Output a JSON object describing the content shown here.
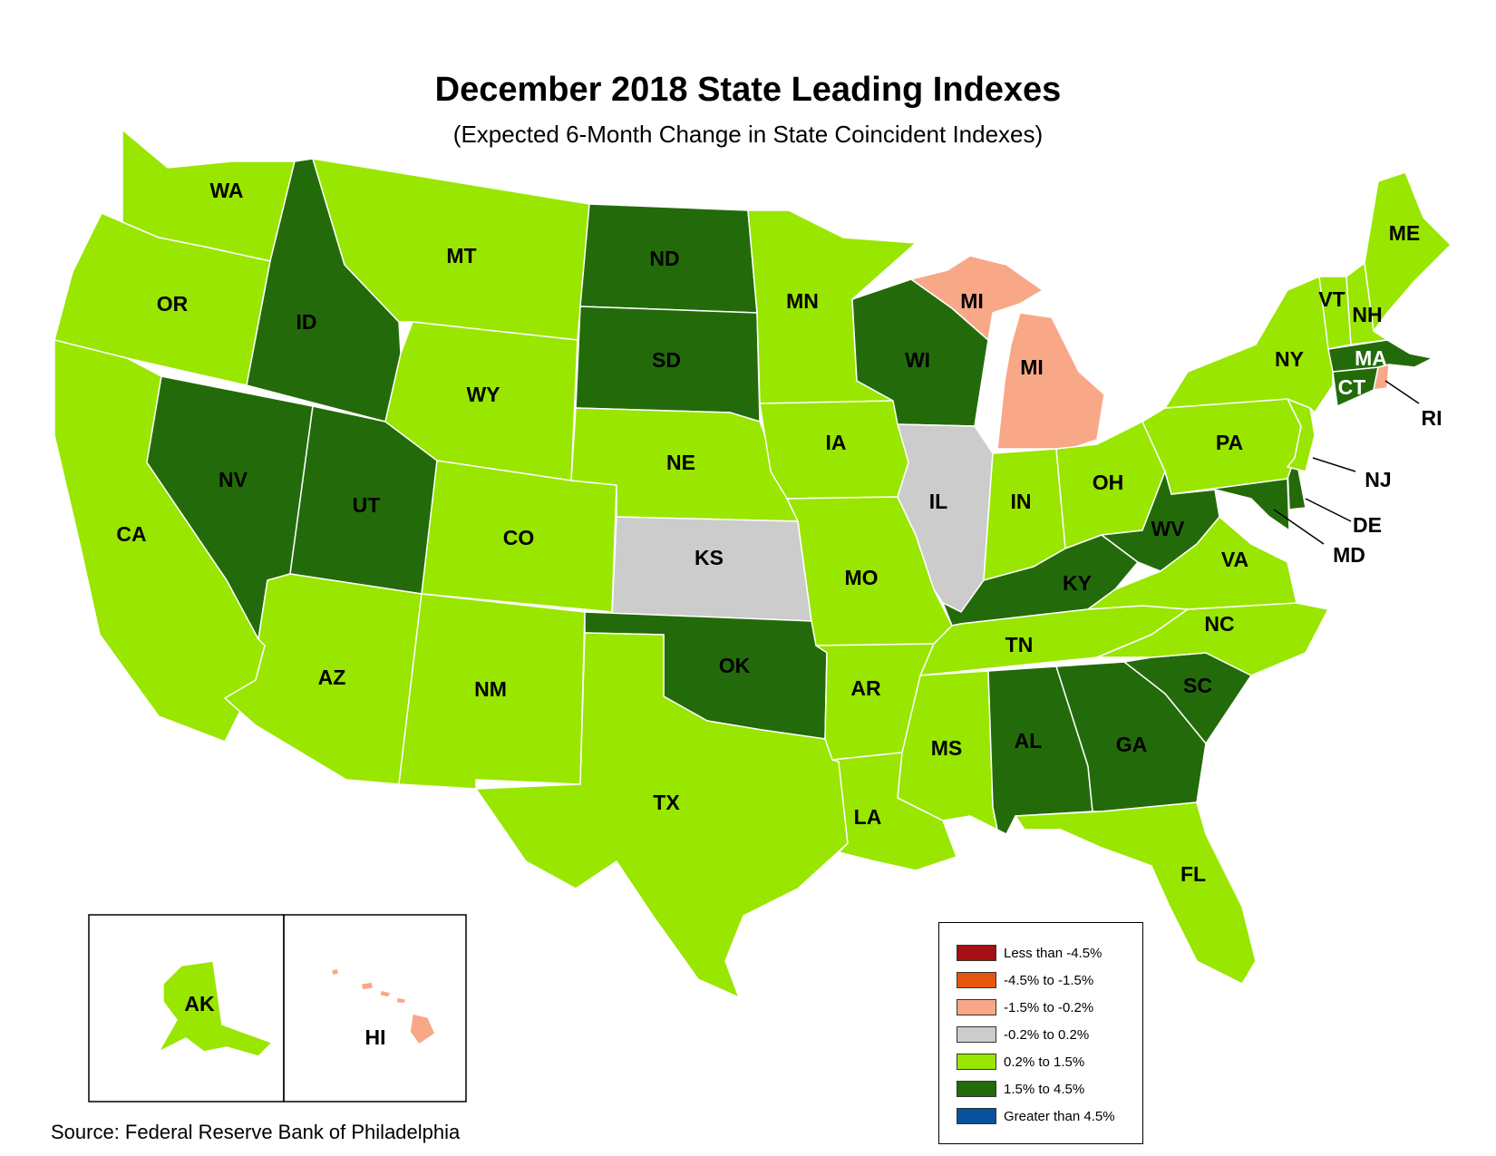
{
  "title": "December 2018 State Leading Indexes",
  "subtitle": "(Expected 6-Month Change in State Coincident Indexes)",
  "source": "Source: Federal Reserve Bank of Philadelphia",
  "colors": {
    "less_than_-4.5": "#a50f15",
    "-4.5_to_-1.5": "#e6550d",
    "-1.5_to_-0.2": "#f8a887",
    "-0.2_to_0.2": "#cccccc",
    "0.2_to_1.5": "#99e600",
    "1.5_to_4.5": "#236b0a",
    "greater_than_4.5": "#08519c",
    "border": "#ffffff"
  },
  "legend": [
    {
      "label": "Less than -4.5%",
      "color": "#a50f15"
    },
    {
      "label": "-4.5% to -1.5%",
      "color": "#e6550d"
    },
    {
      "label": "-1.5% to -0.2%",
      "color": "#f8a887"
    },
    {
      "label": "-0.2% to 0.2%",
      "color": "#cccccc"
    },
    {
      "label": "0.2% to 1.5%",
      "color": "#99e600"
    },
    {
      "label": "1.5% to 4.5%",
      "color": "#236b0a"
    },
    {
      "label": "Greater than 4.5%",
      "color": "#08519c"
    }
  ],
  "states": {
    "WA": "0.2% to 1.5%",
    "OR": "0.2% to 1.5%",
    "CA": "0.2% to 1.5%",
    "ID": "1.5% to 4.5%",
    "NV": "1.5% to 4.5%",
    "UT": "1.5% to 4.5%",
    "AZ": "0.2% to 1.5%",
    "MT": "0.2% to 1.5%",
    "WY": "0.2% to 1.5%",
    "CO": "0.2% to 1.5%",
    "NM": "0.2% to 1.5%",
    "ND": "1.5% to 4.5%",
    "SD": "1.5% to 4.5%",
    "NE": "0.2% to 1.5%",
    "KS": "-0.2% to 0.2%",
    "OK": "1.5% to 4.5%",
    "TX": "0.2% to 1.5%",
    "MN": "0.2% to 1.5%",
    "IA": "0.2% to 1.5%",
    "MO": "0.2% to 1.5%",
    "AR": "0.2% to 1.5%",
    "LA": "0.2% to 1.5%",
    "WI": "1.5% to 4.5%",
    "IL": "-0.2% to 0.2%",
    "MI": "-1.5% to -0.2%",
    "IN": "0.2% to 1.5%",
    "OH": "0.2% to 1.5%",
    "KY": "1.5% to 4.5%",
    "TN": "0.2% to 1.5%",
    "MS": "0.2% to 1.5%",
    "AL": "1.5% to 4.5%",
    "GA": "1.5% to 4.5%",
    "FL": "0.2% to 1.5%",
    "SC": "1.5% to 4.5%",
    "NC": "0.2% to 1.5%",
    "VA": "0.2% to 1.5%",
    "WV": "1.5% to 4.5%",
    "MD": "1.5% to 4.5%",
    "DE": "1.5% to 4.5%",
    "NJ": "0.2% to 1.5%",
    "PA": "0.2% to 1.5%",
    "NY": "0.2% to 1.5%",
    "CT": "1.5% to 4.5%",
    "RI": "-1.5% to -0.2%",
    "MA": "1.5% to 4.5%",
    "VT": "0.2% to 1.5%",
    "NH": "0.2% to 1.5%",
    "ME": "0.2% to 1.5%",
    "AK": "0.2% to 1.5%",
    "HI": "-1.5% to -0.2%"
  },
  "labels": {
    "WA": "WA",
    "OR": "OR",
    "CA": "CA",
    "ID": "ID",
    "NV": "NV",
    "UT": "UT",
    "AZ": "AZ",
    "MT": "MT",
    "WY": "WY",
    "CO": "CO",
    "NM": "NM",
    "ND": "ND",
    "SD": "SD",
    "NE": "NE",
    "KS": "KS",
    "OK": "OK",
    "TX": "TX",
    "MN": "MN",
    "IA": "IA",
    "MO": "MO",
    "AR": "AR",
    "LA": "LA",
    "WI": "WI",
    "IL": "IL",
    "MI_UP": "MI",
    "MI_LP": "MI",
    "IN": "IN",
    "OH": "OH",
    "KY": "KY",
    "TN": "TN",
    "MS": "MS",
    "AL": "AL",
    "GA": "GA",
    "FL": "FL",
    "SC": "SC",
    "NC": "NC",
    "VA": "VA",
    "WV": "WV",
    "MD": "MD",
    "DE": "DE",
    "NJ": "NJ",
    "PA": "PA",
    "NY": "NY",
    "CT": "CT",
    "RI": "RI",
    "MA": "MA",
    "VT": "VT",
    "NH": "NH",
    "ME": "ME",
    "AK": "AK",
    "HI": "HI"
  }
}
